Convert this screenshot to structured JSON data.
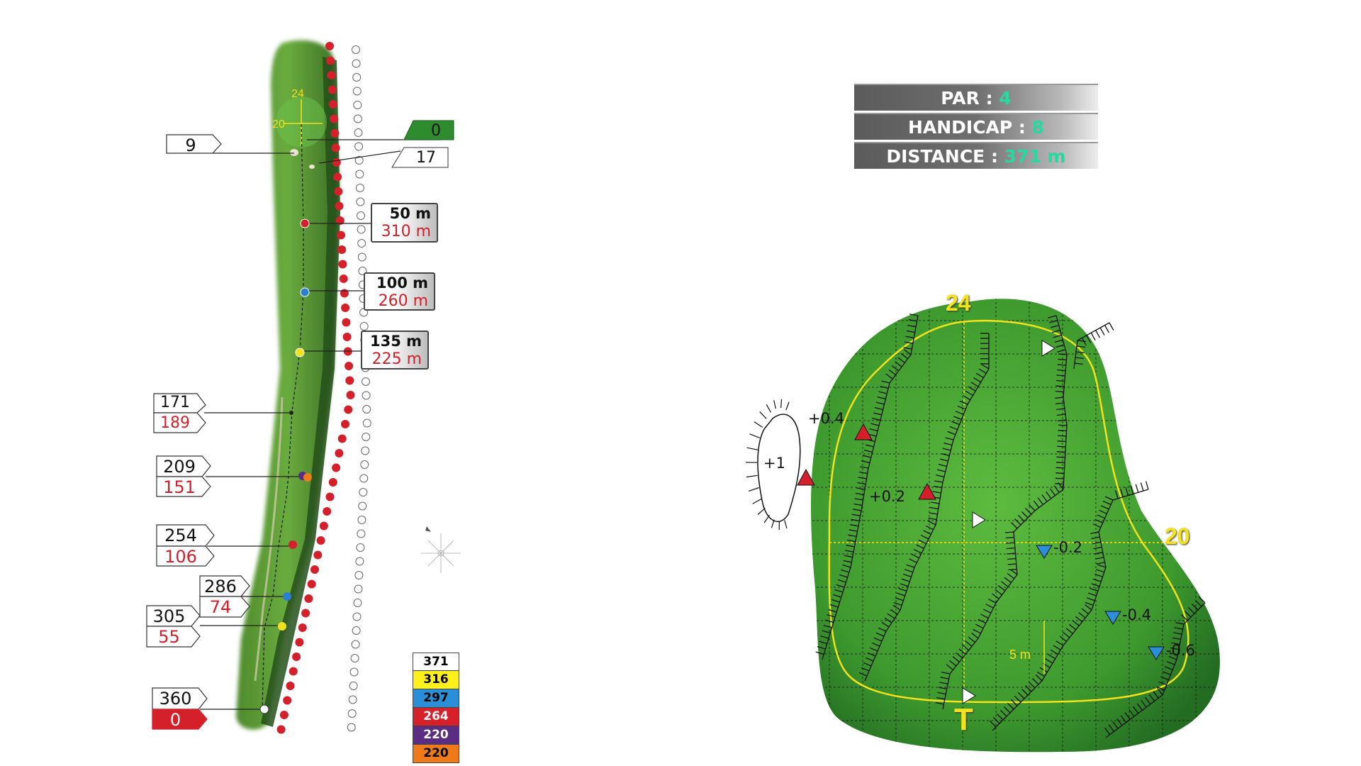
{
  "hole_info": {
    "par_label": "PAR :",
    "par_value": "4",
    "handicap_label": "HANDICAP :",
    "handicap_value": "8",
    "distance_label": "DISTANCE :",
    "distance_value": "371 m"
  },
  "hole_map": {
    "green_width_top": "24",
    "green_width_left": "20",
    "left_labels": [
      {
        "top": "171",
        "bottom": "189"
      },
      {
        "top": "209",
        "bottom": "151"
      },
      {
        "top": "254",
        "bottom": "106"
      },
      {
        "top": "286",
        "bottom": "74"
      },
      {
        "top": "305",
        "bottom": "55"
      },
      {
        "top": "360",
        "bottom": "0"
      }
    ],
    "top_left_label": "9",
    "top_right_green_label": "0",
    "top_right_label": "17",
    "distance_markers": [
      {
        "to_green": "50 m",
        "from_tee": "310 m",
        "dot_color": "#d4202a"
      },
      {
        "to_green": "100 m",
        "from_tee": "260 m",
        "dot_color": "#2a7fd0"
      },
      {
        "to_green": "135 m",
        "from_tee": "225 m",
        "dot_color": "#f2e21d"
      }
    ],
    "tees": [
      {
        "distance": "371",
        "color": "#ffffff",
        "text_color": "#000000"
      },
      {
        "distance": "316",
        "color": "#ffef1a",
        "text_color": "#000000"
      },
      {
        "distance": "297",
        "color": "#2a8fd8",
        "text_color": "#000000"
      },
      {
        "distance": "264",
        "color": "#d6202a",
        "text_color": "#ffffff"
      },
      {
        "distance": "220",
        "color": "#5b2d82",
        "text_color": "#ffffff"
      },
      {
        "distance": "220",
        "color": "#ef7a1a",
        "text_color": "#000000"
      }
    ]
  },
  "green_detail": {
    "width_label": "24",
    "depth_label": "20",
    "scale_label": "5 m",
    "tee_marker": "T",
    "slopes": [
      "+0.4",
      "+1",
      "+0.2",
      "-0.2",
      "-0.4",
      "-0.6"
    ]
  },
  "colors": {
    "fairway_dark": "#2f6b22",
    "fairway_light": "#5ea437",
    "green_light": "#5dbb3f",
    "green_dark": "#236d23",
    "out_of_bounds": "#d4202a",
    "accent_value": "#27d9a0",
    "green_number": "#f3e21c"
  }
}
